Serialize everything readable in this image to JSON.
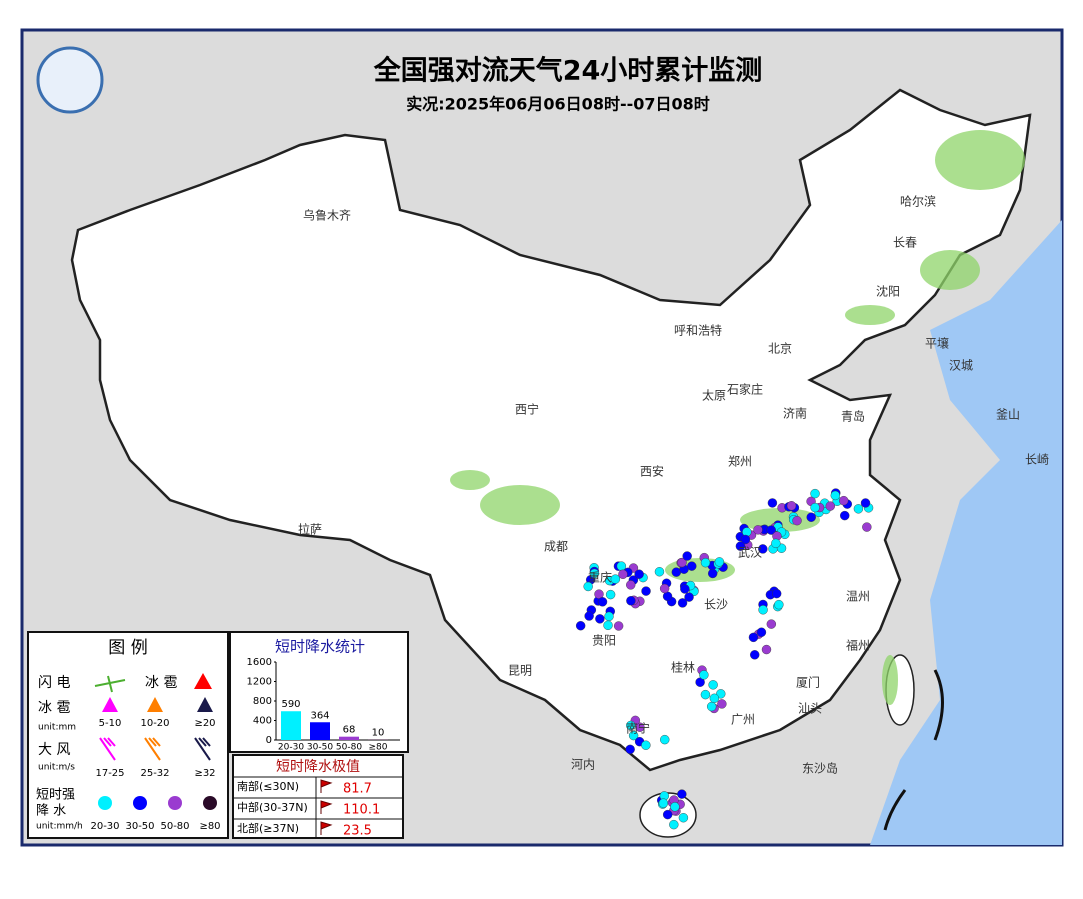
{
  "header": {
    "title": "全国强对流天气24小时累计监测",
    "subtitle": "实况:2025年06月06日08时--07日08时"
  },
  "map": {
    "places": [
      "乌鲁木齐",
      "哈尔滨",
      "长春",
      "沈阳",
      "呼和浩特",
      "北京",
      "石家庄",
      "太原",
      "济南",
      "青岛",
      "西宁",
      "郑州",
      "西安",
      "武汉",
      "成都",
      "重庆",
      "长沙",
      "温州",
      "福州",
      "拉萨",
      "贵阳",
      "昆明",
      "桂林",
      "南宁",
      "广州",
      "厦门",
      "汕头",
      "河内",
      "东沙岛",
      "平壤",
      "汉城",
      "釜山",
      "长崎"
    ]
  },
  "legend": {
    "title": "图 例",
    "lightning": "闪 电",
    "hail": "冰 雹",
    "hail_size": {
      "label": "冰 雹",
      "unit": "unit:mm",
      "classes": [
        "5-10",
        "10-20",
        "≥20"
      ]
    },
    "wind": {
      "label": "大 风",
      "unit": "unit:m/s",
      "classes": [
        "17-25",
        "25-32",
        "≥32"
      ]
    },
    "rain": {
      "label": [
        "短时强",
        "降 水"
      ],
      "unit": "unit:mm/h",
      "classes": [
        "20-30",
        "30-50",
        "50-80",
        "≥80"
      ]
    }
  },
  "chart_data": {
    "type": "bar",
    "title": "短时降水统计",
    "categories": [
      "20-30",
      "30-50",
      "50-80",
      "≥80"
    ],
    "values": [
      590,
      364,
      68,
      10
    ],
    "colors": [
      "#00f0ff",
      "#0000ff",
      "#9a3bd0",
      "#2a0a28"
    ],
    "ylim": [
      0,
      1600
    ],
    "yticks": [
      0,
      400,
      800,
      1200,
      1600
    ]
  },
  "extremes": {
    "title": "短时降水极值",
    "rows": [
      {
        "region": "南部(≤30N)",
        "value": 81.7
      },
      {
        "region": "中部(30-37N)",
        "value": 110.1
      },
      {
        "region": "北部(≥37N)",
        "value": 23.5
      }
    ]
  }
}
